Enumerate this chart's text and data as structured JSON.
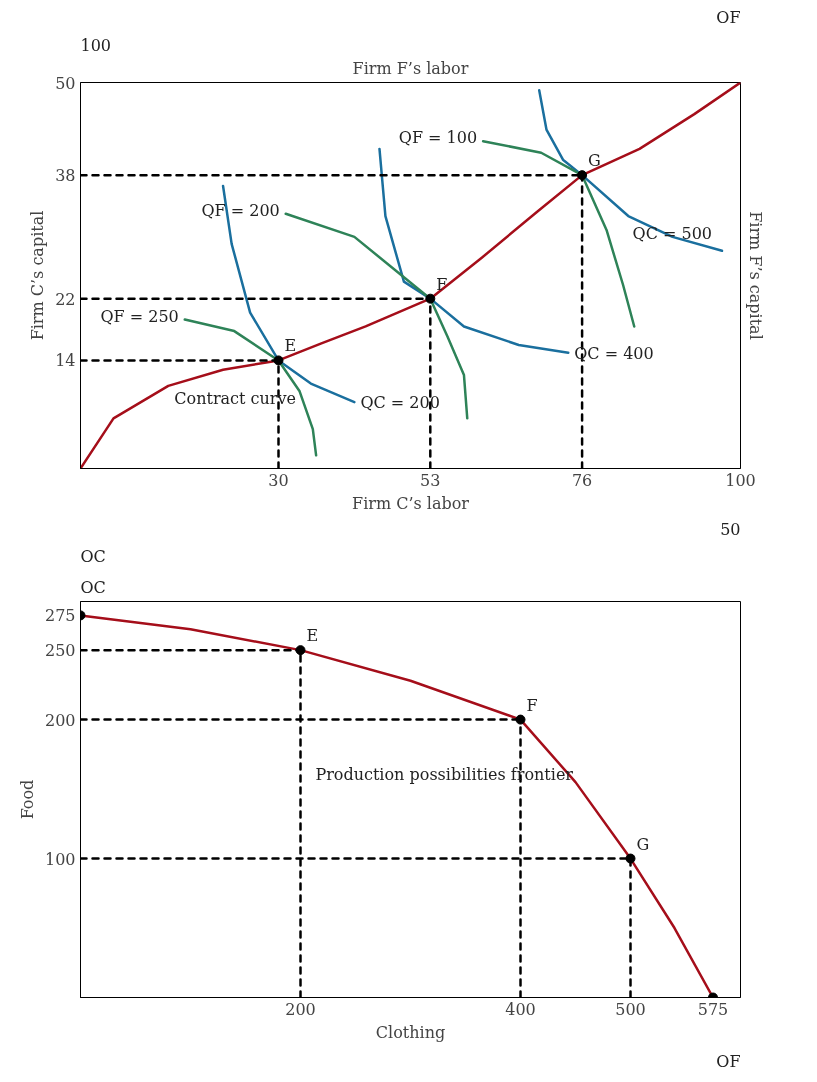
{
  "chart_data": [
    {
      "type": "line",
      "xlabel": "Firm C’s labor",
      "ylabel": "Firm C’s capital",
      "x2label": "Firm F’s labor",
      "y2label": "Firm F’s capital",
      "xlim": [
        0,
        100
      ],
      "xticks": [
        30,
        53,
        76,
        100
      ],
      "ylim": [
        0,
        50
      ],
      "yticks": [
        14,
        22,
        38,
        50
      ],
      "grid": false,
      "series": [
        {
          "name": "QC = 200",
          "color": "#1a6f9e",
          "x": [
            21.6,
            22.9,
            25.7,
            30,
            34.9,
            41.5
          ],
          "values": [
            36.6,
            29.1,
            20.2,
            14,
            11.0,
            8.6
          ]
        },
        {
          "name": "QF = 250",
          "color": "#2e8358",
          "x": [
            15.8,
            23.3,
            30,
            33.2,
            35.2,
            35.7
          ],
          "values": [
            19.3,
            17.8,
            14,
            10.0,
            5.1,
            1.7
          ]
        },
        {
          "name": "QC = 400",
          "color": "#1a6f9e",
          "x": [
            45.3,
            46.2,
            49.0,
            53,
            58.1,
            66.4,
            73.9
          ],
          "values": [
            41.4,
            32.7,
            24.2,
            22,
            18.4,
            16.0,
            15.0
          ]
        },
        {
          "name": "QF = 200",
          "color": "#2e8358",
          "x": [
            31.1,
            41.5,
            53,
            55.6,
            58.1,
            58.6
          ],
          "values": [
            33.0,
            30.0,
            22,
            17.1,
            12.1,
            6.5
          ]
        },
        {
          "name": "QC = 500",
          "color": "#1a6f9e",
          "x": [
            69.5,
            70.6,
            73.1,
            76,
            83,
            89.7,
            97.2
          ],
          "values": [
            49.0,
            43.9,
            40.0,
            38,
            32.7,
            30.0,
            28.2
          ]
        },
        {
          "name": "QF = 100",
          "color": "#2e8358",
          "x": [
            61.0,
            69.8,
            76,
            79.7,
            82.2,
            83.9
          ],
          "values": [
            42.4,
            40.9,
            38,
            30.9,
            23.8,
            18.4
          ]
        },
        {
          "color": "#a50e1a",
          "x": [
            0,
            5,
            13.3,
            21.6,
            30,
            36.5,
            43.2,
            53,
            60.8,
            69.1,
            76,
            84.7,
            93,
            100
          ],
          "values": [
            0,
            6.5,
            10.7,
            12.8,
            14,
            16.2,
            18.4,
            22,
            27.3,
            33.2,
            38,
            41.4,
            45.9,
            50
          ]
        },
        {
          "color": "#000000",
          "line_style": "dashed",
          "x": [
            30,
            30
          ],
          "values": [
            0,
            14
          ]
        },
        {
          "color": "#000000",
          "line_style": "dashed",
          "x": [
            0,
            30
          ],
          "values": [
            14,
            14
          ]
        },
        {
          "color": "#000000",
          "line_style": "dashed",
          "x": [
            53,
            53
          ],
          "values": [
            0,
            22
          ]
        },
        {
          "color": "#000000",
          "line_style": "dashed",
          "x": [
            0,
            53
          ],
          "values": [
            22,
            22
          ]
        },
        {
          "color": "#000000",
          "line_style": "dashed",
          "x": [
            76,
            76
          ],
          "values": [
            0,
            38
          ]
        },
        {
          "color": "#000000",
          "line_style": "dashed",
          "x": [
            0,
            76
          ],
          "values": [
            38,
            38
          ]
        },
        {
          "type": "scatter",
          "color": "#000000",
          "marker": "circle",
          "x": [
            30,
            53,
            76
          ],
          "values": [
            14,
            22,
            38
          ]
        }
      ],
      "annotations": [
        {
          "text": "E",
          "x": 30,
          "y": 14
        },
        {
          "text": "F",
          "x": 53,
          "y": 22
        },
        {
          "text": "G",
          "x": 76,
          "y": 38
        },
        {
          "text": "Contract curve",
          "x": 13.3,
          "y": 10.7
        },
        "100",
        "50",
        "OC",
        "OF"
      ]
    },
    {
      "type": "line",
      "xlabel": "Clothing",
      "ylabel": "Food",
      "xlim": [
        0,
        600
      ],
      "xticks": [
        200,
        400,
        500,
        575
      ],
      "ylim": [
        0,
        285
      ],
      "yticks": [
        100,
        200,
        250,
        275
      ],
      "grid": false,
      "series": [
        {
          "color": "#a50e1a",
          "x": [
            0,
            100,
            200,
            300,
            400,
            450,
            500,
            540,
            575
          ],
          "values": [
            275,
            265,
            250,
            228,
            200,
            155,
            100,
            50,
            0
          ]
        },
        {
          "color": "#000000",
          "line_style": "dashed",
          "x": [
            200,
            200
          ],
          "values": [
            0,
            250
          ]
        },
        {
          "color": "#000000",
          "line_style": "dashed",
          "x": [
            0,
            200
          ],
          "values": [
            250,
            250
          ]
        },
        {
          "color": "#000000",
          "line_style": "dashed",
          "x": [
            400,
            400
          ],
          "values": [
            0,
            200
          ]
        },
        {
          "color": "#000000",
          "line_style": "dashed",
          "x": [
            0,
            400
          ],
          "values": [
            200,
            200
          ]
        },
        {
          "color": "#000000",
          "line_style": "dashed",
          "x": [
            500,
            500
          ],
          "values": [
            0,
            100
          ]
        },
        {
          "color": "#000000",
          "line_style": "dashed",
          "x": [
            0,
            500
          ],
          "values": [
            100,
            100
          ]
        },
        {
          "type": "scatter",
          "color": "#000000",
          "marker": "circle",
          "x": [
            0,
            200,
            400,
            500,
            575
          ],
          "values": [
            275,
            250,
            200,
            100,
            0
          ]
        }
      ],
      "annotations": [
        {
          "text": "E",
          "x": 200,
          "y": 250
        },
        {
          "text": "F",
          "x": 400,
          "y": 200
        },
        {
          "text": "G",
          "x": 500,
          "y": 100
        },
        {
          "text": "Production possibilities frontier",
          "x": 455,
          "y": 150
        },
        "OC",
        "OF"
      ]
    }
  ]
}
